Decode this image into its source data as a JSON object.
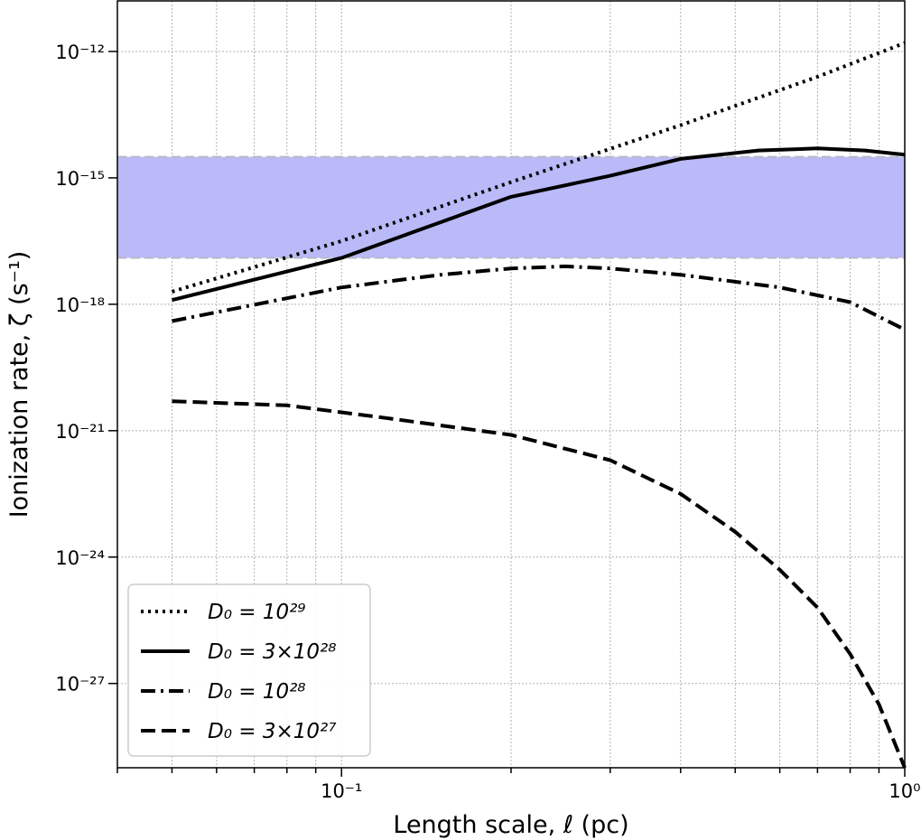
{
  "chart_data": {
    "type": "line",
    "title": "",
    "xlabel": "Length scale, ℓ (pc)",
    "ylabel": "Ionization rate, ζ (s⁻¹)",
    "xscale": "log",
    "yscale": "log",
    "xlim": [
      0.04,
      1.0
    ],
    "ylim_log10": [
      -29.0,
      -10.8
    ],
    "grid": true,
    "legend_position": "bottom-left",
    "x_ticks": [
      {
        "value": 0.1,
        "label": "10⁻¹"
      },
      {
        "value": 1.0,
        "label": "10⁰"
      }
    ],
    "y_ticks": [
      {
        "log10": -12,
        "label": "10⁻¹²"
      },
      {
        "log10": -15,
        "label": "10⁻¹⁵"
      },
      {
        "log10": -18,
        "label": "10⁻¹⁸"
      },
      {
        "log10": -21,
        "label": "10⁻²¹"
      },
      {
        "log10": -24,
        "label": "10⁻²⁴"
      },
      {
        "log10": -27,
        "label": "10⁻²⁷"
      }
    ],
    "band": {
      "log10_low": -16.9,
      "log10_high": -14.5,
      "color": "#babaf8"
    },
    "series": [
      {
        "name": "D₀ = 10²⁹",
        "style": "dotted",
        "points": [
          [
            0.05,
            -17.7
          ],
          [
            0.1,
            -16.5
          ],
          [
            0.2,
            -15.1
          ],
          [
            0.4,
            -13.75
          ],
          [
            0.7,
            -12.6
          ],
          [
            1.0,
            -11.8
          ]
        ]
      },
      {
        "name": "D₀ = 3×10²⁸",
        "style": "solid",
        "points": [
          [
            0.05,
            -17.9
          ],
          [
            0.1,
            -16.9
          ],
          [
            0.2,
            -15.45
          ],
          [
            0.3,
            -14.95
          ],
          [
            0.4,
            -14.55
          ],
          [
            0.55,
            -14.35
          ],
          [
            0.7,
            -14.3
          ],
          [
            0.85,
            -14.35
          ],
          [
            1.0,
            -14.45
          ]
        ]
      },
      {
        "name": "D₀ = 10²⁸",
        "style": "dashdot",
        "points": [
          [
            0.05,
            -18.4
          ],
          [
            0.1,
            -17.6
          ],
          [
            0.15,
            -17.3
          ],
          [
            0.2,
            -17.15
          ],
          [
            0.25,
            -17.1
          ],
          [
            0.3,
            -17.15
          ],
          [
            0.4,
            -17.3
          ],
          [
            0.6,
            -17.6
          ],
          [
            0.8,
            -17.95
          ],
          [
            1.0,
            -18.6
          ]
        ]
      },
      {
        "name": "D₀ = 3×10²⁷",
        "style": "dashed",
        "points": [
          [
            0.05,
            -20.3
          ],
          [
            0.08,
            -20.4
          ],
          [
            0.12,
            -20.7
          ],
          [
            0.2,
            -21.1
          ],
          [
            0.3,
            -21.7
          ],
          [
            0.4,
            -22.5
          ],
          [
            0.5,
            -23.4
          ],
          [
            0.6,
            -24.3
          ],
          [
            0.7,
            -25.2
          ],
          [
            0.8,
            -26.3
          ],
          [
            0.9,
            -27.5
          ],
          [
            1.0,
            -29.0
          ]
        ]
      }
    ]
  }
}
